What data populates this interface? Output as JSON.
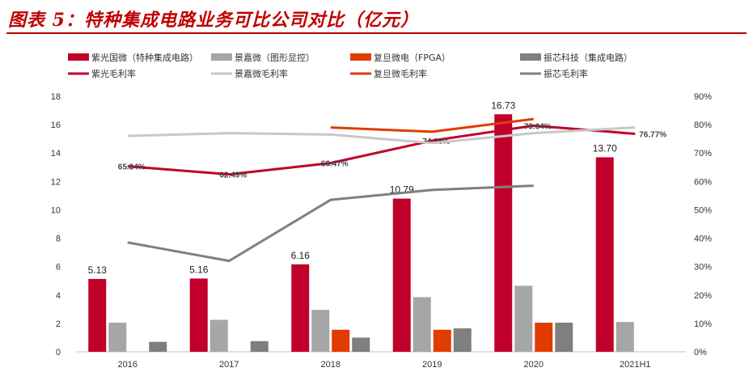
{
  "title": "图表 5：特种集成电路业务可比公司对比（亿元）",
  "chart_data": {
    "type": "bar",
    "categories": [
      "2016",
      "2017",
      "2018",
      "2019",
      "2020",
      "2021H1"
    ],
    "y_left": {
      "ylim": [
        0,
        18
      ],
      "ticks": [
        "0",
        "2",
        "4",
        "6",
        "8",
        "10",
        "12",
        "14",
        "16",
        "18"
      ]
    },
    "y_right": {
      "ylim": [
        0,
        0.9
      ],
      "ticks": [
        "0%",
        "10%",
        "20%",
        "30%",
        "40%",
        "50%",
        "60%",
        "70%",
        "80%",
        "90%"
      ]
    },
    "bar_series": [
      {
        "name": "紫光国微（特种集成电路）",
        "color": "#c0002a",
        "values": [
          5.13,
          5.16,
          6.16,
          10.79,
          16.73,
          13.7
        ],
        "labels": [
          "5.13",
          "5.16",
          "6.16",
          "10.79",
          "16.73",
          "13.70"
        ]
      },
      {
        "name": "景嘉微（图形显控）",
        "color": "#a6a6a6",
        "values": [
          2.05,
          2.25,
          2.95,
          3.85,
          4.65,
          2.1
        ]
      },
      {
        "name": "复旦微电（FPGA）",
        "color": "#e03c00",
        "values": [
          null,
          null,
          1.55,
          1.55,
          2.05,
          null
        ]
      },
      {
        "name": "振芯科技（集成电路）",
        "color": "#7f7f7f",
        "values": [
          0.7,
          0.75,
          1.0,
          1.65,
          2.05,
          null
        ]
      }
    ],
    "line_series": [
      {
        "name": "紫光毛利率",
        "color": "#c0002a",
        "values": [
          0.6534,
          0.6249,
          0.6647,
          0.7435,
          0.7964,
          0.7677
        ],
        "labels": [
          "65.34%",
          "62.49%",
          "66.47%",
          "74.35%",
          "79.64%",
          "76.77%"
        ]
      },
      {
        "name": "景嘉微毛利率",
        "color": "#c8c8c8",
        "values": [
          0.76,
          0.77,
          0.765,
          0.735,
          0.77,
          0.79
        ]
      },
      {
        "name": "复旦微毛利率",
        "color": "#e03c00",
        "values": [
          null,
          null,
          0.79,
          0.775,
          0.82,
          null
        ]
      },
      {
        "name": "振芯毛利率",
        "color": "#7f7f7f",
        "values": [
          0.385,
          0.32,
          0.535,
          0.57,
          0.585,
          null
        ]
      }
    ]
  }
}
